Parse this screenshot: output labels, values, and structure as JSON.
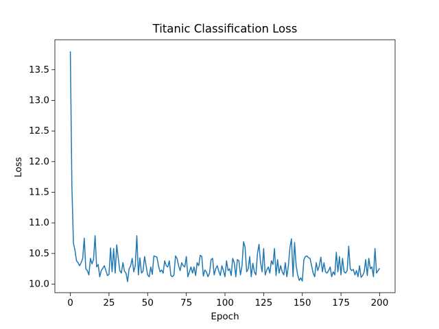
{
  "chart_data": {
    "type": "line",
    "title": "Titanic Classification Loss",
    "x_label": "Epoch",
    "y_label": "Loss",
    "x": [
      0,
      1,
      2,
      3,
      4,
      5,
      6,
      7,
      8,
      9,
      10,
      11,
      12,
      13,
      14,
      15,
      16,
      17,
      18,
      19,
      20,
      21,
      22,
      23,
      24,
      25,
      26,
      27,
      28,
      29,
      30,
      31,
      32,
      33,
      34,
      35,
      36,
      37,
      38,
      39,
      40,
      41,
      42,
      43,
      44,
      45,
      46,
      47,
      48,
      49,
      50,
      51,
      52,
      53,
      54,
      55,
      56,
      57,
      58,
      59,
      60,
      61,
      62,
      63,
      64,
      65,
      66,
      67,
      68,
      69,
      70,
      71,
      72,
      73,
      74,
      75,
      76,
      77,
      78,
      79,
      80,
      81,
      82,
      83,
      84,
      85,
      86,
      87,
      88,
      89,
      90,
      91,
      92,
      93,
      94,
      95,
      96,
      97,
      98,
      99,
      100,
      101,
      102,
      103,
      104,
      105,
      106,
      107,
      108,
      109,
      110,
      111,
      112,
      113,
      114,
      115,
      116,
      117,
      118,
      119,
      120,
      121,
      122,
      123,
      124,
      125,
      126,
      127,
      128,
      129,
      130,
      131,
      132,
      133,
      134,
      135,
      136,
      137,
      138,
      139,
      140,
      141,
      142,
      143,
      144,
      145,
      146,
      147,
      148,
      149,
      150,
      151,
      152,
      153,
      154,
      155,
      156,
      157,
      158,
      159,
      160,
      161,
      162,
      163,
      164,
      165,
      166,
      167,
      168,
      169,
      170,
      171,
      172,
      173,
      174,
      175,
      176,
      177,
      178,
      179,
      180,
      181,
      182,
      183,
      184,
      185,
      186,
      187,
      188,
      189,
      190,
      191,
      192,
      193,
      194,
      195,
      196,
      197,
      198,
      199,
      200
    ],
    "series": [
      {
        "color": "#1f77b4",
        "values": [
          13.8,
          11.6,
          10.67,
          10.55,
          10.38,
          10.35,
          10.3,
          10.35,
          10.42,
          10.75,
          10.25,
          10.22,
          10.15,
          10.42,
          10.33,
          10.4,
          10.79,
          10.28,
          10.32,
          10.12,
          10.22,
          10.26,
          10.3,
          10.22,
          10.14,
          10.16,
          10.59,
          10.2,
          10.58,
          10.18,
          10.64,
          10.42,
          10.22,
          10.18,
          10.35,
          10.21,
          10.18,
          10.04,
          10.25,
          10.3,
          10.42,
          10.2,
          10.3,
          10.79,
          10.15,
          10.43,
          10.18,
          10.21,
          10.45,
          10.3,
          10.15,
          10.12,
          10.28,
          10.16,
          10.46,
          10.45,
          10.44,
          10.3,
          10.2,
          10.23,
          10.18,
          10.38,
          10.3,
          10.28,
          10.38,
          10.14,
          10.12,
          10.15,
          10.46,
          10.42,
          10.3,
          10.22,
          10.35,
          10.3,
          10.28,
          10.45,
          10.12,
          10.2,
          10.28,
          10.18,
          10.28,
          10.14,
          10.35,
          10.3,
          10.47,
          10.45,
          10.13,
          10.23,
          10.2,
          10.12,
          10.18,
          10.4,
          10.42,
          10.15,
          10.25,
          10.3,
          10.21,
          10.14,
          10.3,
          10.22,
          10.12,
          10.38,
          10.22,
          10.25,
          10.14,
          10.42,
          10.35,
          10.12,
          10.4,
          10.38,
          10.15,
          10.3,
          10.69,
          10.6,
          10.2,
          10.25,
          10.45,
          10.12,
          10.34,
          10.2,
          10.15,
          10.5,
          10.65,
          10.35,
          10.2,
          10.58,
          10.15,
          10.23,
          10.28,
          10.18,
          10.38,
          10.32,
          10.58,
          10.14,
          10.4,
          10.18,
          10.3,
          10.2,
          10.15,
          10.35,
          10.12,
          10.3,
          10.6,
          10.74,
          10.12,
          10.68,
          10.3,
          10.15,
          10.06,
          10.1,
          10.05,
          10.4,
          10.45,
          10.46,
          10.43,
          10.42,
          10.3,
          10.18,
          10.12,
          10.35,
          10.22,
          10.3,
          10.44,
          10.2,
          10.35,
          10.2,
          10.18,
          10.22,
          10.28,
          10.12,
          10.2,
          10.15,
          10.52,
          10.2,
          10.45,
          10.15,
          10.42,
          10.2,
          10.18,
          10.22,
          10.62,
          10.25,
          10.22,
          10.24,
          10.15,
          10.22,
          10.12,
          10.3,
          10.11,
          10.14,
          10.2,
          10.4,
          10.14,
          10.42,
          10.25,
          10.28,
          10.12,
          10.58,
          10.18,
          10.22,
          10.26
        ]
      }
    ],
    "xlim": [
      -10,
      210
    ],
    "ylim": [
      9.86,
      13.99
    ],
    "xticks": [
      0,
      25,
      50,
      75,
      100,
      125,
      150,
      175,
      200
    ],
    "yticks": [
      {
        "value": 10,
        "label": "10.0"
      },
      10.5,
      {
        "value": 11,
        "label": "11.0"
      },
      11.5,
      {
        "value": 12,
        "label": "12.0"
      },
      12.5,
      {
        "value": 13,
        "label": "13.0"
      },
      13.5
    ],
    "grid": false
  }
}
